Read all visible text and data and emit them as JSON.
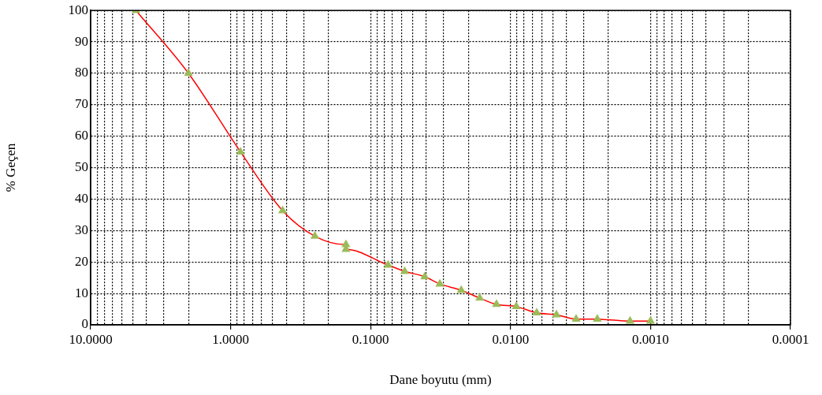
{
  "chart_data": {
    "type": "line",
    "xlabel": "Dane boyutu (mm)",
    "ylabel": "% Geçen",
    "log": "x",
    "grid": true,
    "marker": "triangle",
    "legend": false,
    "xlim": [
      10,
      0.0001
    ],
    "xticks": [
      {
        "value": 10,
        "label": "10.0000"
      },
      {
        "value": 1,
        "label": "1.0000"
      },
      {
        "value": 0.1,
        "label": "0.1000"
      },
      {
        "value": 0.01,
        "label": "0.0100"
      },
      {
        "value": 0.001,
        "label": "0.0010"
      },
      {
        "value": 0.0001,
        "label": "0.0001"
      },
      {
        "value": 9,
        "label": null
      },
      {
        "value": 8,
        "label": null
      },
      {
        "value": 7,
        "label": null
      },
      {
        "value": 6,
        "label": null
      },
      {
        "value": 5,
        "label": null
      },
      {
        "value": 4,
        "label": null
      },
      {
        "value": 3,
        "label": null
      },
      {
        "value": 2,
        "label": null
      },
      {
        "value": 0.9,
        "label": null
      },
      {
        "value": 0.8,
        "label": null
      },
      {
        "value": 0.7,
        "label": null
      },
      {
        "value": 0.6,
        "label": null
      },
      {
        "value": 0.5,
        "label": null
      },
      {
        "value": 0.4,
        "label": null
      },
      {
        "value": 0.3,
        "label": null
      },
      {
        "value": 0.2,
        "label": null
      },
      {
        "value": 0.09,
        "label": null
      },
      {
        "value": 0.08,
        "label": null
      },
      {
        "value": 0.07,
        "label": null
      },
      {
        "value": 0.06,
        "label": null
      },
      {
        "value": 0.05,
        "label": null
      },
      {
        "value": 0.04,
        "label": null
      },
      {
        "value": 0.03,
        "label": null
      },
      {
        "value": 0.02,
        "label": null
      },
      {
        "value": 0.009,
        "label": null
      },
      {
        "value": 0.008,
        "label": null
      },
      {
        "value": 0.007,
        "label": null
      },
      {
        "value": 0.006,
        "label": null
      },
      {
        "value": 0.005,
        "label": null
      },
      {
        "value": 0.004,
        "label": null
      },
      {
        "value": 0.003,
        "label": null
      },
      {
        "value": 0.002,
        "label": null
      },
      {
        "value": 0.0009,
        "label": null
      },
      {
        "value": 0.0008,
        "label": null
      },
      {
        "value": 0.0007,
        "label": null
      },
      {
        "value": 0.0006,
        "label": null
      },
      {
        "value": 0.0005,
        "label": null
      },
      {
        "value": 0.0004,
        "label": null
      },
      {
        "value": 0.0003,
        "label": null
      },
      {
        "value": 0.0002,
        "label": null
      }
    ],
    "ylim": [
      0,
      100
    ],
    "yticks": [
      0,
      10,
      20,
      30,
      40,
      50,
      60,
      70,
      80,
      90,
      100
    ],
    "series": [
      {
        "color": "#ff0000",
        "marker": "none",
        "x": [
          4.75,
          2.0,
          0.85,
          0.425,
          0.25,
          0.15,
          0.15,
          0.075,
          0.057,
          0.041,
          0.032,
          0.0225,
          0.0166,
          0.0126,
          0.0091,
          0.0065,
          0.0047,
          0.0034,
          0.0024,
          0.0014,
          0.001
        ],
        "values": [
          100,
          80,
          55,
          36.3,
          28.2,
          25.5,
          24,
          19,
          17,
          15.3,
          13,
          11,
          8.5,
          6.5,
          5.8,
          3.8,
          3.2,
          1.8,
          1.8,
          1.2,
          1.2
        ]
      },
      {
        "type": "scatter",
        "color": "#9bbb59",
        "x": [
          4.75,
          2.0,
          0.85,
          0.425,
          0.25,
          0.15,
          0.15,
          0.075,
          0.057,
          0.041,
          0.032,
          0.0225,
          0.0166,
          0.0126,
          0.0091,
          0.0065,
          0.0047,
          0.0034,
          0.0024,
          0.0014,
          0.001
        ],
        "values": [
          100,
          80,
          55,
          36.3,
          28.2,
          25.5,
          24,
          19,
          17,
          15.3,
          13,
          11,
          8.5,
          6.5,
          5.8,
          3.8,
          3.2,
          1.8,
          1.8,
          1.2,
          1.2
        ]
      }
    ]
  }
}
